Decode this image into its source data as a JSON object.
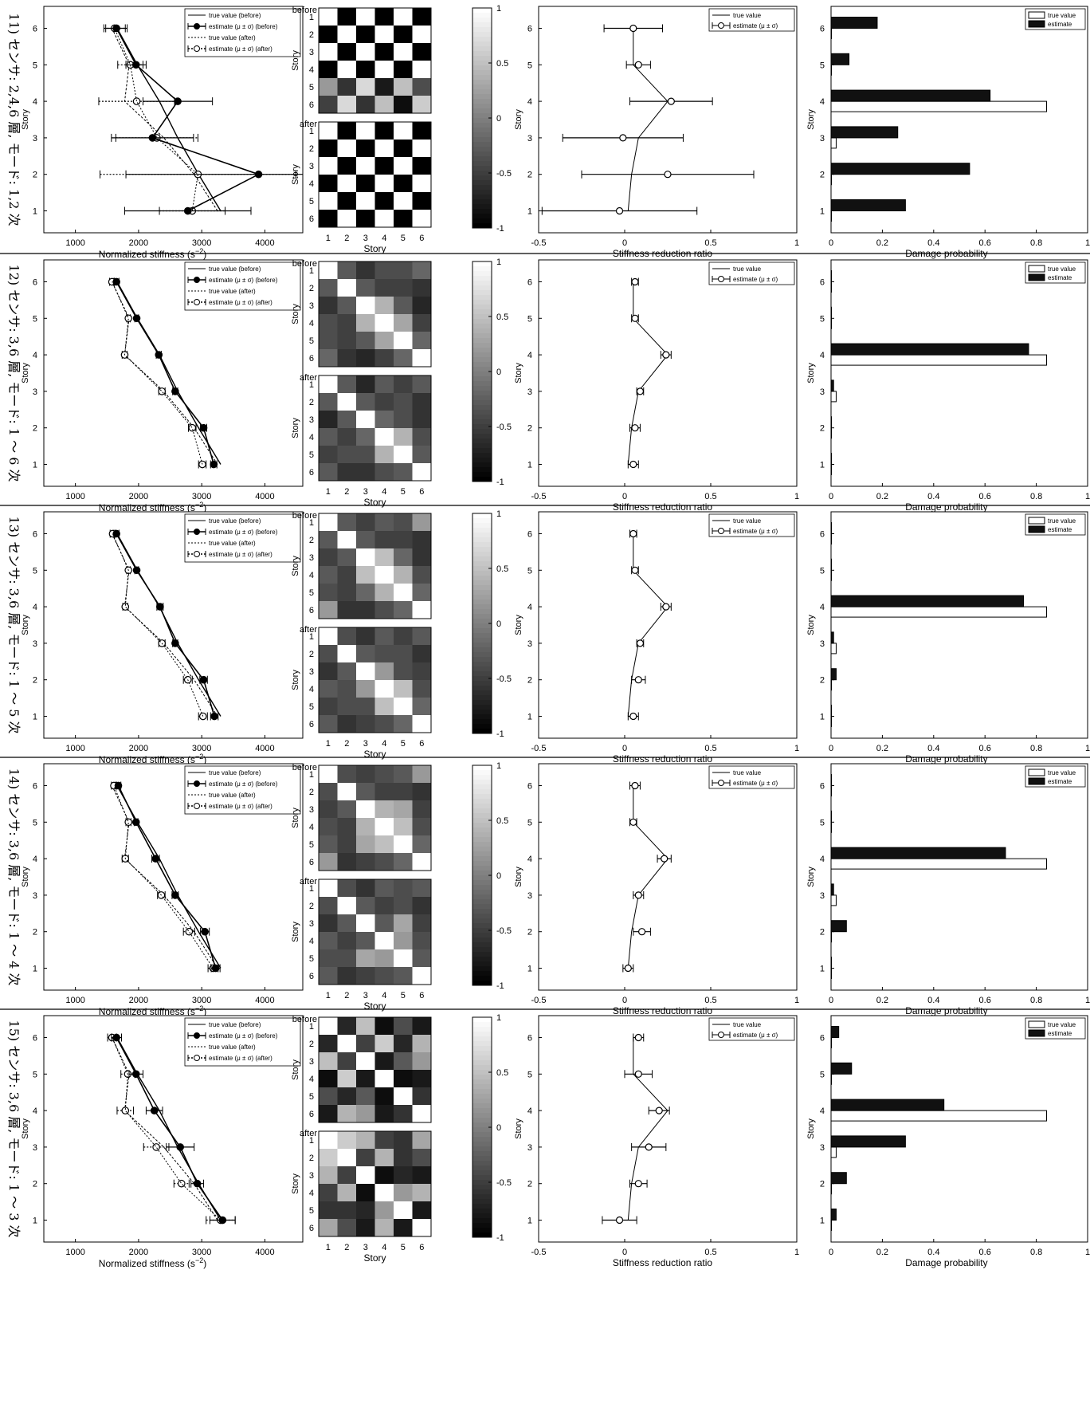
{
  "labels": {
    "x_stiffness": "Normalized stiffness (s",
    "x_stiffness_sup": "−2",
    "x_story": "Story",
    "x_reduction": "Stiffness reduction ratio",
    "x_damage": "Damage probability",
    "y_story": "Story",
    "before": "before",
    "after": "after"
  },
  "stiffness_axis": {
    "ticks": [
      "1000",
      "2000",
      "3000",
      "4000"
    ],
    "xlim": [
      500,
      4600
    ]
  },
  "reduction_axis": {
    "ticks": [
      "-0.5",
      "0",
      "0.5",
      "1"
    ],
    "xlim": [
      -0.5,
      1
    ]
  },
  "damage_axis": {
    "ticks": [
      "0",
      "0.2",
      "0.4",
      "0.6",
      "0.8",
      "1"
    ],
    "xlim": [
      0,
      1
    ]
  },
  "story_ticks": [
    "1",
    "2",
    "3",
    "4",
    "5",
    "6"
  ],
  "colorbar_ticks": [
    "1",
    "0.5",
    "0",
    "-0.5",
    "-1"
  ],
  "legends": {
    "stiffness": [
      "true value (before)",
      "estimate (μ ± σ) (before)",
      "true value (after)",
      "estimate (μ ± σ) (after)"
    ],
    "reduction": [
      "true value",
      "estimate (μ ± σ)"
    ],
    "damage": [
      "true value",
      "estimate"
    ]
  },
  "chart_data": {
    "type": "composite",
    "true_stiffness_before": [
      3300,
      2950,
      2620,
      2330,
      1980,
      1660
    ],
    "true_stiffness_after": [
      3250,
      2880,
      2400,
      1780,
      1850,
      1580
    ],
    "true_reduction": [
      0.02,
      0.04,
      0.08,
      0.25,
      0.05,
      0.05
    ],
    "true_damage": [
      0,
      0,
      0.02,
      0.84,
      0,
      0
    ],
    "rows": [
      {
        "row_label": "11) センサ: 2,4,6 層, モード: 1,2 次",
        "stiffness_before": {
          "mean": [
            2780,
            3900,
            2220,
            2620,
            1960,
            1650
          ],
          "sd": [
            1000,
            2100,
            650,
            550,
            160,
            170
          ]
        },
        "stiffness_after": {
          "mean": [
            2850,
            2940,
            2290,
            1970,
            1870,
            1620
          ],
          "sd": [
            520,
            1550,
            650,
            600,
            200,
            170
          ]
        },
        "corr_before": [
          [
            1,
            -1,
            1,
            -1,
            1,
            -1
          ],
          [
            -1,
            1,
            -1,
            1,
            -1,
            1
          ],
          [
            1,
            -1,
            1,
            -1,
            1,
            -1
          ],
          [
            -1,
            1,
            -1,
            1,
            -1,
            1
          ],
          [
            0.2,
            -0.6,
            0.7,
            -0.8,
            0.5,
            -0.4
          ],
          [
            -0.5,
            0.7,
            -0.6,
            0.5,
            -0.9,
            0.6
          ]
        ],
        "corr_after": [
          [
            1,
            -1,
            1,
            -1,
            1,
            -1
          ],
          [
            -1,
            1,
            -1,
            1,
            -1,
            1
          ],
          [
            1,
            -1,
            1,
            -1,
            1,
            -1
          ],
          [
            -1,
            1,
            -1,
            1,
            -1,
            1
          ],
          [
            1,
            -1,
            1,
            -1,
            1,
            -1
          ],
          [
            -1,
            1,
            -1,
            1,
            -1,
            1
          ]
        ],
        "reduction": {
          "mean": [
            -0.03,
            0.25,
            -0.01,
            0.27,
            0.08,
            0.05
          ],
          "sd": [
            0.45,
            0.5,
            0.35,
            0.24,
            0.07,
            0.17
          ]
        },
        "damage": [
          0.29,
          0.54,
          0.26,
          0.62,
          0.07,
          0.18
        ]
      },
      {
        "row_label": "12) センサ: 3,6 層, モード: 1 ～ 6 次",
        "stiffness_before": {
          "mean": [
            3190,
            3030,
            2580,
            2320,
            1970,
            1650
          ],
          "sd": [
            50,
            50,
            40,
            40,
            30,
            40
          ]
        },
        "stiffness_after": {
          "mean": [
            3010,
            2850,
            2370,
            1780,
            1840,
            1580
          ],
          "sd": [
            60,
            60,
            50,
            40,
            30,
            40
          ]
        },
        "corr_before": [
          [
            1,
            -0.3,
            -0.6,
            -0.4,
            -0.4,
            -0.2
          ],
          [
            -0.3,
            1,
            -0.3,
            -0.5,
            -0.5,
            -0.6
          ],
          [
            -0.6,
            -0.3,
            1,
            0.4,
            -0.3,
            -0.7
          ],
          [
            -0.4,
            -0.5,
            0.4,
            1,
            0.3,
            -0.5
          ],
          [
            -0.4,
            -0.5,
            -0.3,
            0.3,
            1,
            -0.2
          ],
          [
            -0.2,
            -0.6,
            -0.7,
            -0.5,
            -0.2,
            1
          ]
        ],
        "corr_after": [
          [
            1,
            -0.3,
            -0.7,
            -0.3,
            -0.5,
            -0.3
          ],
          [
            -0.3,
            1,
            -0.3,
            -0.5,
            -0.4,
            -0.6
          ],
          [
            -0.7,
            -0.3,
            1,
            -0.2,
            -0.4,
            -0.6
          ],
          [
            -0.3,
            -0.5,
            -0.2,
            1,
            0.4,
            -0.4
          ],
          [
            -0.5,
            -0.4,
            -0.4,
            0.4,
            1,
            -0.3
          ],
          [
            -0.3,
            -0.6,
            -0.6,
            -0.4,
            -0.3,
            1
          ]
        ],
        "reduction": {
          "mean": [
            0.05,
            0.06,
            0.09,
            0.24,
            0.06,
            0.06
          ],
          "sd": [
            0.03,
            0.03,
            0.02,
            0.03,
            0.02,
            0.02
          ]
        },
        "damage": [
          0,
          0,
          0.01,
          0.77,
          0,
          0
        ]
      },
      {
        "row_label": "13) センサ: 3,6 層, モード: 1 ～ 5 次",
        "stiffness_before": {
          "mean": [
            3200,
            3030,
            2580,
            2340,
            1970,
            1650
          ],
          "sd": [
            60,
            60,
            40,
            50,
            30,
            40
          ]
        },
        "stiffness_after": {
          "mean": [
            3020,
            2780,
            2370,
            1790,
            1840,
            1590
          ],
          "sd": [
            70,
            70,
            50,
            40,
            30,
            40
          ]
        },
        "corr_before": [
          [
            1,
            -0.3,
            -0.5,
            -0.3,
            -0.4,
            0.2
          ],
          [
            -0.3,
            1,
            -0.3,
            -0.5,
            -0.5,
            -0.6
          ],
          [
            -0.5,
            -0.3,
            1,
            0.5,
            -0.2,
            -0.6
          ],
          [
            -0.3,
            -0.5,
            0.5,
            1,
            0.4,
            -0.4
          ],
          [
            -0.4,
            -0.5,
            -0.2,
            0.4,
            1,
            -0.2
          ],
          [
            0.2,
            -0.6,
            -0.6,
            -0.4,
            -0.2,
            1
          ]
        ],
        "corr_after": [
          [
            1,
            -0.4,
            -0.6,
            -0.3,
            -0.5,
            -0.3
          ],
          [
            -0.4,
            1,
            -0.3,
            -0.4,
            -0.4,
            -0.6
          ],
          [
            -0.6,
            -0.3,
            1,
            0.2,
            -0.4,
            -0.5
          ],
          [
            -0.3,
            -0.4,
            0.2,
            1,
            0.5,
            -0.4
          ],
          [
            -0.5,
            -0.4,
            -0.4,
            0.5,
            1,
            -0.2
          ],
          [
            -0.3,
            -0.6,
            -0.5,
            -0.4,
            -0.2,
            1
          ]
        ],
        "reduction": {
          "mean": [
            0.05,
            0.08,
            0.09,
            0.24,
            0.06,
            0.05
          ],
          "sd": [
            0.03,
            0.04,
            0.02,
            0.03,
            0.02,
            0.02
          ]
        },
        "damage": [
          0,
          0.02,
          0.01,
          0.75,
          0,
          0
        ]
      },
      {
        "row_label": "14) センサ: 3,6 層, モード: 1 ～ 4 次",
        "stiffness_before": {
          "mean": [
            3220,
            3050,
            2580,
            2270,
            1960,
            1680
          ],
          "sd": [
            70,
            70,
            50,
            60,
            30,
            40
          ]
        },
        "stiffness_after": {
          "mean": [
            3180,
            2800,
            2360,
            1790,
            1840,
            1610
          ],
          "sd": [
            80,
            90,
            60,
            50,
            40,
            40
          ]
        },
        "corr_before": [
          [
            1,
            -0.4,
            -0.5,
            -0.4,
            -0.3,
            0.2
          ],
          [
            -0.4,
            1,
            -0.3,
            -0.5,
            -0.5,
            -0.6
          ],
          [
            -0.5,
            -0.3,
            1,
            0.4,
            0.3,
            -0.5
          ],
          [
            -0.4,
            -0.5,
            0.4,
            1,
            0.5,
            -0.4
          ],
          [
            -0.3,
            -0.5,
            0.3,
            0.5,
            1,
            -0.2
          ],
          [
            0.2,
            -0.6,
            -0.5,
            -0.4,
            -0.2,
            1
          ]
        ],
        "corr_after": [
          [
            1,
            -0.4,
            -0.6,
            -0.3,
            -0.4,
            -0.3
          ],
          [
            -0.4,
            1,
            -0.3,
            -0.5,
            -0.4,
            -0.6
          ],
          [
            -0.6,
            -0.3,
            1,
            -0.3,
            0.3,
            -0.5
          ],
          [
            -0.3,
            -0.5,
            -0.3,
            1,
            0.2,
            -0.4
          ],
          [
            -0.4,
            -0.4,
            0.3,
            0.2,
            1,
            -0.3
          ],
          [
            -0.3,
            -0.6,
            -0.5,
            -0.4,
            -0.3,
            1
          ]
        ],
        "reduction": {
          "mean": [
            0.02,
            0.1,
            0.08,
            0.23,
            0.05,
            0.06
          ],
          "sd": [
            0.03,
            0.05,
            0.03,
            0.04,
            0.02,
            0.03
          ]
        },
        "damage": [
          0,
          0.06,
          0.01,
          0.68,
          0,
          0
        ]
      },
      {
        "row_label": "15) センサ: 3,6 層, モード: 1 ～ 3 次",
        "stiffness_before": {
          "mean": [
            3330,
            2930,
            2660,
            2250,
            1960,
            1650
          ],
          "sd": [
            200,
            100,
            220,
            130,
            110,
            80
          ]
        },
        "stiffness_after": {
          "mean": [
            3300,
            2680,
            2280,
            1790,
            1830,
            1580
          ],
          "sd": [
            230,
            120,
            200,
            130,
            110,
            70
          ]
        },
        "corr_before": [
          [
            1,
            -0.7,
            0.5,
            -0.9,
            -0.4,
            -0.8
          ],
          [
            -0.7,
            1,
            -0.5,
            0.6,
            -0.7,
            0.4
          ],
          [
            0.5,
            -0.5,
            1,
            -0.8,
            -0.3,
            0.2
          ],
          [
            -0.9,
            0.6,
            -0.8,
            1,
            -0.9,
            -0.8
          ],
          [
            -0.4,
            -0.7,
            -0.3,
            -0.9,
            1,
            -0.6
          ],
          [
            -0.8,
            0.4,
            0.2,
            -0.8,
            -0.6,
            1
          ]
        ],
        "corr_after": [
          [
            1,
            0.6,
            0.4,
            -0.5,
            -0.6,
            0.3
          ],
          [
            0.6,
            1,
            -0.5,
            0.4,
            -0.6,
            -0.4
          ],
          [
            0.4,
            -0.5,
            1,
            -0.9,
            -0.7,
            -0.8
          ],
          [
            -0.5,
            0.4,
            -0.9,
            1,
            0.2,
            0.4
          ],
          [
            -0.6,
            -0.6,
            -0.7,
            0.2,
            1,
            -0.8
          ],
          [
            0.3,
            -0.4,
            -0.8,
            0.4,
            -0.8,
            1
          ]
        ],
        "reduction": {
          "mean": [
            -0.03,
            0.08,
            0.14,
            0.2,
            0.08,
            0.08
          ],
          "sd": [
            0.1,
            0.05,
            0.1,
            0.06,
            0.08,
            0.03
          ]
        },
        "damage": [
          0.02,
          0.06,
          0.29,
          0.44,
          0.08,
          0.03
        ]
      }
    ]
  }
}
